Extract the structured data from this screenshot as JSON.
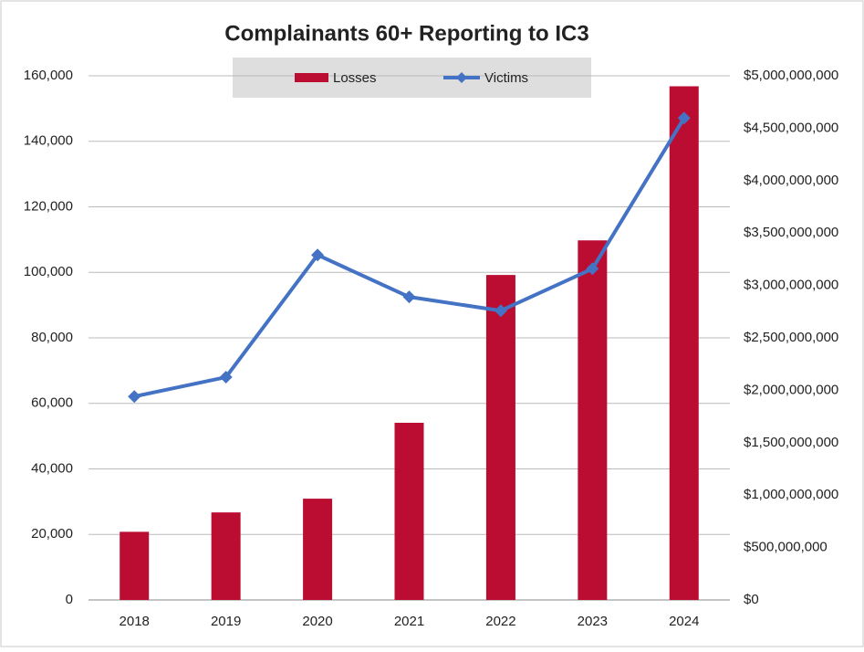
{
  "chart_data": {
    "type": "combo",
    "title": "Complainants 60+ Reporting to IC3",
    "categories": [
      "2018",
      "2019",
      "2020",
      "2021",
      "2022",
      "2023",
      "2024"
    ],
    "series": [
      {
        "name": "Losses",
        "type": "bar",
        "axis": "y2",
        "color": "#bb0d31",
        "values": [
          650000000,
          835000000,
          966000000,
          1690000000,
          3100000000,
          3430000000,
          4900000000
        ]
      },
      {
        "name": "Victims",
        "type": "line",
        "color": "#4472c4",
        "values": [
          62100,
          68000,
          105300,
          92500,
          88300,
          101100,
          147100
        ]
      }
    ],
    "ylim": [
      0,
      160000
    ],
    "yticks": [
      0,
      {
        "value": 20000,
        "label": "20,000"
      },
      {
        "value": 40000,
        "label": "40,000"
      },
      {
        "value": 60000,
        "label": "60,000"
      },
      {
        "value": 80000,
        "label": "80,000"
      },
      {
        "value": 100000,
        "label": "100,000"
      },
      {
        "value": 120000,
        "label": "120,000"
      },
      {
        "value": 140000,
        "label": "140,000"
      },
      {
        "value": 160000,
        "label": "160,000"
      }
    ],
    "y2lim": [
      0,
      5000000000
    ],
    "y2ticks": [
      {
        "value": 0,
        "label": "$0"
      },
      {
        "value": 500000000,
        "label": "$500,000,000"
      },
      {
        "value": 1000000000,
        "label": "$1,000,000,000"
      },
      {
        "value": 1500000000,
        "label": "$1,500,000,000"
      },
      {
        "value": 2000000000,
        "label": "$2,000,000,000"
      },
      {
        "value": 2500000000,
        "label": "$2,500,000,000"
      },
      {
        "value": 3000000000,
        "label": "$3,000,000,000"
      },
      {
        "value": 3500000000,
        "label": "$3,500,000,000"
      },
      {
        "value": 4000000000,
        "label": "$4,000,000,000"
      },
      {
        "value": 4500000000,
        "label": "$4,500,000,000"
      },
      {
        "value": 5000000000,
        "label": "$5,000,000,000"
      }
    ],
    "grid": true,
    "legend": "top"
  }
}
